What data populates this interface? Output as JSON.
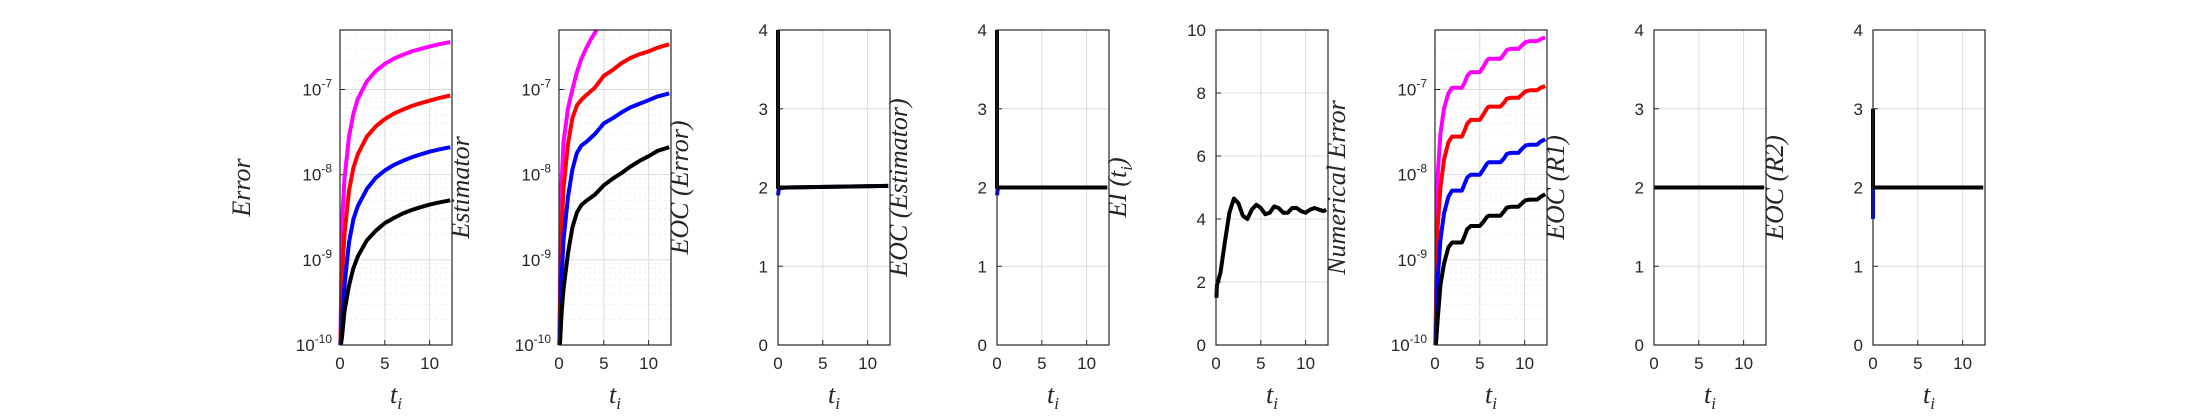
{
  "chart_data": [
    {
      "type": "line",
      "scale": "log",
      "ylabel": "Error",
      "xlabel": "t_i",
      "xlim": [
        0,
        12.5
      ],
      "ylim": [
        1e-10,
        5e-07
      ],
      "xticks": [
        "0",
        "5",
        "10"
      ],
      "yticks": [
        {
          "v": 1e-10,
          "l": "-10"
        },
        {
          "v": 1e-09,
          "l": "-9"
        },
        {
          "v": 1e-08,
          "l": "-8"
        },
        {
          "v": 1e-07,
          "l": "-7"
        }
      ],
      "series": [
        {
          "color": "#ff00ff",
          "x": [
            0.05,
            0.25,
            0.5,
            1,
            1.5,
            2,
            3,
            4,
            5,
            6,
            7,
            8,
            9,
            10,
            11,
            12.3
          ],
          "y": [
            1e-10,
            3e-09,
            9e-09,
            2.8e-08,
            5.2e-08,
            7.8e-08,
            1.25e-07,
            1.65e-07,
            2e-07,
            2.3e-07,
            2.55e-07,
            2.8e-07,
            3e-07,
            3.2e-07,
            3.4e-07,
            3.6e-07
          ]
        },
        {
          "color": "#ff0000",
          "x": [
            0.05,
            0.25,
            0.5,
            1,
            1.5,
            2,
            3,
            4,
            5,
            6,
            7,
            8,
            9,
            10,
            11,
            12.3
          ],
          "y": [
            1e-10,
            7e-10,
            2e-09,
            6.5e-09,
            1.2e-08,
            1.75e-08,
            2.8e-08,
            3.7e-08,
            4.5e-08,
            5.2e-08,
            5.8e-08,
            6.4e-08,
            6.9e-08,
            7.4e-08,
            7.9e-08,
            8.5e-08
          ]
        },
        {
          "color": "#0000ff",
          "x": [
            0.05,
            0.25,
            0.5,
            1,
            1.5,
            2,
            3,
            4,
            5,
            6,
            7,
            8,
            9,
            10,
            11,
            12.3
          ],
          "y": [
            1e-10,
            1.8e-10,
            5e-10,
            1.6e-09,
            3e-09,
            4.3e-09,
            6.8e-09,
            9.2e-09,
            1.12e-08,
            1.3e-08,
            1.45e-08,
            1.6e-08,
            1.73e-08,
            1.86e-08,
            1.97e-08,
            2.1e-08
          ]
        },
        {
          "color": "#000000",
          "x": [
            0.1,
            0.25,
            0.5,
            1,
            1.5,
            2,
            3,
            4,
            5,
            6,
            7,
            8,
            9,
            10,
            11,
            12.3
          ],
          "y": [
            1e-10,
            1.3e-10,
            2.5e-10,
            5e-10,
            8e-10,
            1.1e-09,
            1.7e-09,
            2.2e-09,
            2.7e-09,
            3.1e-09,
            3.5e-09,
            3.85e-09,
            4.15e-09,
            4.45e-09,
            4.7e-09,
            5e-09
          ]
        }
      ]
    },
    {
      "type": "line",
      "scale": "log",
      "ylabel": "Estimator",
      "xlabel": "t_i",
      "xlim": [
        0,
        12.5
      ],
      "ylim": [
        1e-10,
        5e-07
      ],
      "xticks": [
        "0",
        "5",
        "10"
      ],
      "yticks": [
        {
          "v": 1e-10,
          "l": "-10"
        },
        {
          "v": 1e-09,
          "l": "-9"
        },
        {
          "v": 1e-08,
          "l": "-8"
        },
        {
          "v": 1e-07,
          "l": "-7"
        }
      ],
      "series": [
        {
          "color": "#ff00ff",
          "x": [
            0.05,
            0.2,
            0.5,
            1,
            1.5,
            2,
            2.5,
            3,
            3.5,
            4.2
          ],
          "y": [
            1e-10,
            5e-09,
            2.4e-08,
            6e-08,
            1e-07,
            1.6e-07,
            2.3e-07,
            3e-07,
            3.8e-07,
            5e-07
          ]
        },
        {
          "color": "#ff0000",
          "x": [
            0.05,
            0.25,
            0.5,
            1,
            1.5,
            2,
            2.5,
            3,
            4,
            5,
            6,
            7,
            8,
            9,
            10,
            11,
            12.3
          ],
          "y": [
            1e-10,
            1.8e-09,
            7e-09,
            2.3e-08,
            4.6e-08,
            6.5e-08,
            7.6e-08,
            8.5e-08,
            1.05e-07,
            1.45e-07,
            1.7e-07,
            2.05e-07,
            2.35e-07,
            2.6e-07,
            2.8e-07,
            3.1e-07,
            3.4e-07
          ]
        },
        {
          "color": "#0000ff",
          "x": [
            0.05,
            0.25,
            0.5,
            1,
            1.5,
            2,
            2.5,
            3,
            4,
            5,
            6,
            7,
            8,
            9,
            10,
            11,
            12.3
          ],
          "y": [
            1e-10,
            5e-10,
            1.7e-09,
            5.5e-09,
            1.15e-08,
            1.8e-08,
            2.2e-08,
            2.4e-08,
            3e-08,
            4e-08,
            4.6e-08,
            5.4e-08,
            6.2e-08,
            6.8e-08,
            7.5e-08,
            8.3e-08,
            9e-08
          ]
        },
        {
          "color": "#000000",
          "x": [
            0.1,
            0.3,
            0.5,
            1,
            1.5,
            2,
            2.5,
            3,
            4,
            5,
            6,
            7,
            8,
            9,
            10,
            11,
            12.3
          ],
          "y": [
            1e-10,
            2.5e-10,
            4.5e-10,
            1.2e-09,
            2.4e-09,
            3.6e-09,
            4.4e-09,
            4.9e-09,
            5.8e-09,
            7.5e-09,
            9e-09,
            1.05e-08,
            1.25e-08,
            1.45e-08,
            1.65e-08,
            1.9e-08,
            2.1e-08
          ]
        }
      ]
    },
    {
      "type": "line",
      "scale": "linear",
      "ylabel": "EOC (Error)",
      "xlabel": "t_i",
      "xlim": [
        0,
        12.5
      ],
      "ylim": [
        0,
        4
      ],
      "xticks": [
        "0",
        "5",
        "10"
      ],
      "yticks": [
        "0",
        "1",
        "2",
        "3",
        "4"
      ],
      "series": [
        {
          "color": "#0000ff",
          "x": [
            0,
            0.1,
            1,
            12.3
          ],
          "y": [
            1.9,
            1.99,
            2.0,
            2.02
          ]
        },
        {
          "color": "#000000",
          "x": [
            0,
            0,
            0.1,
            1,
            12.3
          ],
          "y": [
            4,
            2.0,
            2.0,
            2.0,
            2.02
          ]
        }
      ]
    },
    {
      "type": "line",
      "scale": "linear",
      "ylabel": "EOC (Estimator)",
      "xlabel": "t_i",
      "xlim": [
        0,
        12.5
      ],
      "ylim": [
        0,
        4
      ],
      "xticks": [
        "0",
        "5",
        "10"
      ],
      "yticks": [
        "0",
        "1",
        "2",
        "3",
        "4"
      ],
      "series": [
        {
          "color": "#0000ff",
          "x": [
            0,
            0.1,
            12.3
          ],
          "y": [
            1.9,
            2.0,
            2.0
          ]
        },
        {
          "color": "#000000",
          "x": [
            0,
            0,
            0.1,
            12.3
          ],
          "y": [
            4,
            2.0,
            2.0,
            2.0
          ]
        }
      ]
    },
    {
      "type": "line",
      "scale": "linear",
      "ylabel": "EI (t_i)",
      "xlabel": "t_i",
      "xlim": [
        0,
        12.5
      ],
      "ylim": [
        0,
        10
      ],
      "xticks": [
        "0",
        "5",
        "10"
      ],
      "yticks": [
        "0",
        "2",
        "4",
        "6",
        "8",
        "10"
      ],
      "series": [
        {
          "color": "#000000",
          "x": [
            0.05,
            0.1,
            0.5,
            1,
            1.5,
            2,
            2.5,
            3,
            3.5,
            4,
            4.5,
            5,
            5.5,
            6,
            6.5,
            7,
            7.5,
            8,
            8.5,
            9,
            9.5,
            10,
            10.5,
            11,
            11.5,
            12,
            12.3
          ],
          "y": [
            1.5,
            1.9,
            2.3,
            3.3,
            4.2,
            4.65,
            4.5,
            4.1,
            4.0,
            4.3,
            4.45,
            4.35,
            4.15,
            4.2,
            4.4,
            4.35,
            4.2,
            4.2,
            4.35,
            4.35,
            4.25,
            4.2,
            4.3,
            4.35,
            4.3,
            4.25,
            4.3
          ]
        }
      ]
    },
    {
      "type": "line",
      "scale": "log",
      "ylabel": "Numerical Error",
      "xlabel": "t_i",
      "xlim": [
        0,
        12.5
      ],
      "ylim": [
        1e-10,
        5e-07
      ],
      "xticks": [
        "0",
        "5",
        "10"
      ],
      "yticks": [
        {
          "v": 1e-10,
          "l": "-10"
        },
        {
          "v": 1e-09,
          "l": "-9"
        },
        {
          "v": 1e-08,
          "l": "-8"
        },
        {
          "v": 1e-07,
          "l": "-7"
        }
      ],
      "series": [
        {
          "color": "#ff00ff",
          "x": [
            0.05,
            0.3,
            0.6,
            1,
            1.5,
            1.9,
            3,
            3.3,
            3.6,
            4,
            5,
            5.4,
            5.8,
            6,
            7.3,
            7.7,
            8,
            8.4,
            9.3,
            9.7,
            10.1,
            10.6,
            11.4,
            11.8,
            12.3
          ],
          "y": [
            1e-10,
            1e-08,
            3e-08,
            6e-08,
            9e-08,
            1.05e-07,
            1.05e-07,
            1.2e-07,
            1.45e-07,
            1.6e-07,
            1.6e-07,
            1.85e-07,
            2.2e-07,
            2.3e-07,
            2.3e-07,
            2.6e-07,
            2.9e-07,
            3e-07,
            3e-07,
            3.3e-07,
            3.6e-07,
            3.7e-07,
            3.7e-07,
            3.9e-07,
            4.1e-07
          ]
        },
        {
          "color": "#ff0000",
          "x": [
            0.05,
            0.3,
            0.6,
            1,
            1.5,
            1.9,
            3,
            3.3,
            3.6,
            4,
            5,
            5.4,
            5.8,
            6,
            7.3,
            7.7,
            8,
            8.4,
            9.3,
            9.7,
            10.1,
            10.6,
            11.4,
            11.8,
            12.3
          ],
          "y": [
            1e-10,
            2.5e-09,
            7e-09,
            1.5e-08,
            2.4e-08,
            2.8e-08,
            2.8e-08,
            3.3e-08,
            4e-08,
            4.4e-08,
            4.4e-08,
            5.1e-08,
            6e-08,
            6.3e-08,
            6.3e-08,
            7e-08,
            7.8e-08,
            8e-08,
            8e-08,
            8.7e-08,
            9.5e-08,
            9.8e-08,
            9.8e-08,
            1.05e-07,
            1.1e-07
          ]
        },
        {
          "color": "#0000ff",
          "x": [
            0.05,
            0.3,
            0.6,
            1,
            1.5,
            1.9,
            3,
            3.3,
            3.6,
            4,
            5,
            5.4,
            5.8,
            6,
            7.3,
            7.7,
            8,
            8.4,
            9.3,
            9.7,
            10.1,
            10.6,
            11.4,
            11.8,
            12.3
          ],
          "y": [
            1e-10,
            6e-10,
            1.7e-09,
            3.5e-09,
            5.5e-09,
            6.5e-09,
            6.5e-09,
            7.8e-09,
            9.3e-09,
            1e-08,
            1e-08,
            1.15e-08,
            1.35e-08,
            1.4e-08,
            1.4e-08,
            1.55e-08,
            1.75e-08,
            1.8e-08,
            1.8e-08,
            2e-08,
            2.2e-08,
            2.25e-08,
            2.25e-08,
            2.45e-08,
            2.6e-08
          ]
        },
        {
          "color": "#000000",
          "x": [
            0.1,
            0.3,
            0.6,
            1,
            1.5,
            1.9,
            3,
            3.3,
            3.6,
            4,
            5,
            5.4,
            5.8,
            6,
            7.3,
            7.7,
            8,
            8.4,
            9.3,
            9.7,
            10.1,
            10.6,
            11.4,
            11.8,
            12.3
          ],
          "y": [
            1e-10,
            2e-10,
            5e-10,
            9e-10,
            1.4e-09,
            1.6e-09,
            1.6e-09,
            1.9e-09,
            2.3e-09,
            2.5e-09,
            2.5e-09,
            2.8e-09,
            3.2e-09,
            3.3e-09,
            3.3e-09,
            3.7e-09,
            4.1e-09,
            4.2e-09,
            4.2e-09,
            4.6e-09,
            5e-09,
            5.1e-09,
            5.1e-09,
            5.5e-09,
            5.9e-09
          ]
        }
      ]
    },
    {
      "type": "line",
      "scale": "linear",
      "ylabel": "EOC (R1)",
      "xlabel": "t_i",
      "xlim": [
        0,
        12.5
      ],
      "ylim": [
        0,
        4
      ],
      "xticks": [
        "0",
        "5",
        "10"
      ],
      "yticks": [
        "0",
        "1",
        "2",
        "3",
        "4"
      ],
      "series": [
        {
          "color": "#000000",
          "x": [
            0,
            12.3
          ],
          "y": [
            2.0,
            2.0
          ]
        }
      ]
    },
    {
      "type": "line",
      "scale": "linear",
      "ylabel": "EOC (R2)",
      "xlabel": "t_i",
      "xlim": [
        0,
        12.5
      ],
      "ylim": [
        0,
        4
      ],
      "xticks": [
        "0",
        "5",
        "10"
      ],
      "yticks": [
        "0",
        "1",
        "2",
        "3",
        "4"
      ],
      "series": [
        {
          "color": "#ff00ff",
          "x": [
            0,
            0.2
          ],
          "y": [
            2.0,
            2.0
          ]
        },
        {
          "color": "#0000ff",
          "x": [
            0,
            0,
            0.1
          ],
          "y": [
            1.6,
            2.0,
            2.0
          ]
        },
        {
          "color": "#000000",
          "x": [
            0,
            0,
            0.1,
            12.3
          ],
          "y": [
            3.0,
            2.0,
            2.0,
            2.0
          ]
        }
      ]
    }
  ]
}
